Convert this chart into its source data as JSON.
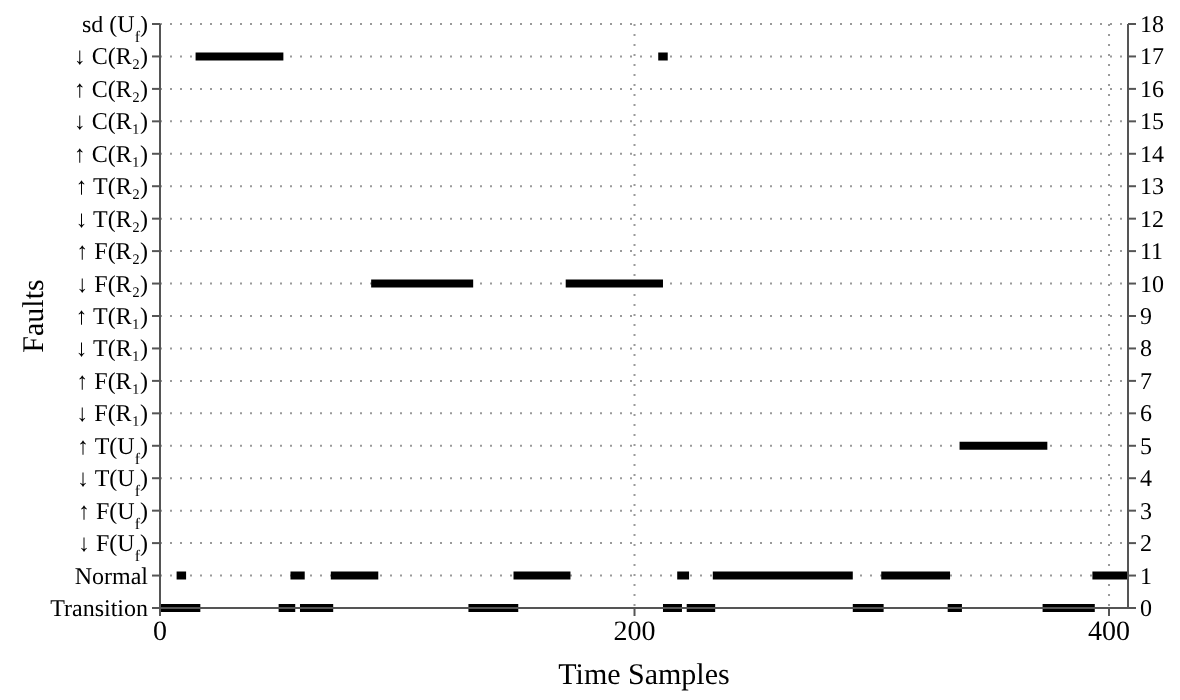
{
  "chart_data": {
    "type": "line",
    "xlabel": "Time Samples",
    "ylabel": "Faults",
    "xlim": [
      0,
      408
    ],
    "xticks": [
      0,
      200,
      400
    ],
    "ylim": [
      0,
      18
    ],
    "yticks": [
      0,
      1,
      2,
      3,
      4,
      5,
      6,
      7,
      8,
      9,
      10,
      11,
      12,
      13,
      14,
      15,
      16,
      17,
      18
    ],
    "y_categories": [
      "sd (U$_{f}$)",
      "↓ C(R₂)",
      "↑ C(R₂)",
      "↓ C(R₁)",
      "↑ C(R₁)",
      "↑ T(R₂)",
      "↓ T(R₂)",
      "↑ F(R₂)",
      "↓ F(R₂)",
      "↑ T(R₁)",
      "↓ T(R₁)",
      "↑ F(R₁)",
      "↓ F(R₁)",
      "↑ T(U$_{f}$)",
      "↓ T(U$_{f}$)",
      "↑ F(U$_{f}$)",
      "↓ F(U$_{f}$)",
      "Normal",
      "Transition"
    ],
    "grid": true,
    "line_style": "solid",
    "marker": "none",
    "series": [
      {
        "color": "#000000",
        "x": [
          15,
          52,
          null,
          210,
          214
        ],
        "values": [
          17,
          17,
          null,
          17,
          17
        ]
      },
      {
        "color": "#000000",
        "x": [
          89,
          132,
          null,
          171,
          212
        ],
        "values": [
          10,
          10,
          null,
          10,
          10
        ]
      },
      {
        "color": "#000000",
        "x": [
          337,
          374
        ],
        "values": [
          5,
          5
        ]
      },
      {
        "color": "#000000",
        "x": [
          7,
          11,
          null,
          55,
          61,
          null,
          72,
          92,
          null,
          149,
          173,
          null,
          218,
          223,
          null,
          233,
          292,
          null,
          304,
          333,
          null,
          393,
          408
        ],
        "values": [
          1,
          1,
          null,
          1,
          1,
          null,
          1,
          1,
          null,
          1,
          1,
          null,
          1,
          1,
          null,
          1,
          1,
          null,
          1,
          1,
          null,
          1,
          1
        ]
      },
      {
        "color": "#000000",
        "x": [
          0,
          17,
          null,
          50,
          57,
          null,
          59,
          73,
          null,
          130,
          151,
          null,
          212,
          220,
          null,
          222,
          234,
          null,
          292,
          305,
          null,
          332,
          338,
          null,
          372,
          394
        ],
        "values": [
          0,
          0,
          null,
          0,
          0,
          null,
          0,
          0,
          null,
          0,
          0,
          null,
          0,
          0,
          null,
          0,
          0,
          null,
          0,
          0,
          null,
          0,
          0,
          null,
          0,
          0
        ]
      }
    ]
  }
}
